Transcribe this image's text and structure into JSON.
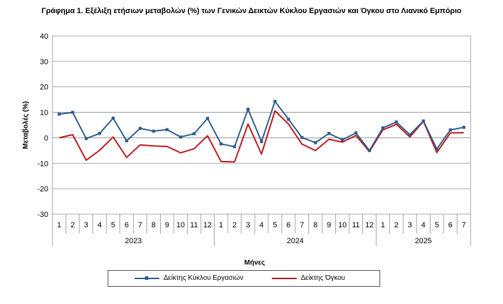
{
  "chart_data": {
    "type": "line",
    "title": "Γράφημα 1. Εξέλιξη ετήσιων μεταβολών (%) των Γενικών Δεικτών Κύκλου Εργασιών και Όγκου στο Λιανικό Εμπόριο",
    "xlabel": "Μήνες",
    "ylabel": "Μεταβολές (%)",
    "ylim": [
      -30,
      40
    ],
    "yticks": [
      -30,
      -20,
      -10,
      0,
      10,
      20,
      30,
      40
    ],
    "grid": "horizontal",
    "legend_position": "bottom",
    "x": [
      "1",
      "2",
      "3",
      "4",
      "5",
      "6",
      "7",
      "8",
      "9",
      "10",
      "11",
      "12",
      "1",
      "2",
      "3",
      "4",
      "5",
      "6",
      "7",
      "8",
      "9",
      "10",
      "11",
      "12",
      "1",
      "2",
      "3",
      "4",
      "5",
      "6",
      "7"
    ],
    "year_groups": [
      {
        "label": "2023",
        "count": 12
      },
      {
        "label": "2024",
        "count": 12
      },
      {
        "label": "2025",
        "count": 7
      }
    ],
    "series": [
      {
        "name": "Δείκτης Κύκλου Εργασιών",
        "color": "#2e5d8e",
        "marker": "square",
        "values": [
          9.3,
          10.0,
          -0.3,
          1.7,
          7.7,
          -1.2,
          3.7,
          2.6,
          3.2,
          0.3,
          1.6,
          7.6,
          -2.4,
          -3.5,
          11.2,
          -1.5,
          14.3,
          7.3,
          0.1,
          -1.9,
          1.7,
          -0.8,
          1.9,
          -5.0,
          3.9,
          6.2,
          1.2,
          6.6,
          -4.4,
          3.1,
          4.1
        ]
      },
      {
        "name": "Δείκτης Όγκου",
        "color": "#c0161d",
        "marker": "none",
        "values": [
          0.0,
          1.2,
          -8.8,
          -4.9,
          0.3,
          -7.7,
          -2.8,
          -3.2,
          -3.4,
          -5.9,
          -4.3,
          0.8,
          -9.3,
          -9.5,
          5.4,
          -6.4,
          10.6,
          5.4,
          -2.5,
          -5.0,
          -0.6,
          -1.7,
          0.9,
          -5.4,
          3.1,
          5.3,
          0.3,
          6.5,
          -5.8,
          1.9,
          2.0
        ]
      }
    ]
  }
}
